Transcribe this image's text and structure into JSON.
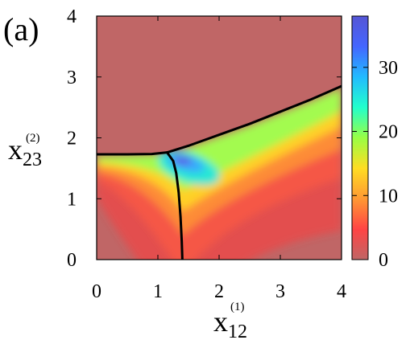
{
  "chart_data": {
    "type": "heatmap",
    "panel_label": "(a)",
    "xlabel": {
      "base": "x",
      "sub": "12",
      "sup": "(1)"
    },
    "ylabel": {
      "base": "x",
      "sub": "23",
      "sup": "(2)"
    },
    "xlim": [
      0,
      4
    ],
    "ylim": [
      0,
      4
    ],
    "x_ticks": [
      "0",
      "1",
      "2",
      "3",
      "4"
    ],
    "y_ticks": [
      "0",
      "1",
      "2",
      "3",
      "4"
    ],
    "colorbar": {
      "range": [
        0,
        38
      ],
      "ticks": [
        "0",
        "10",
        "20",
        "30"
      ],
      "tick_values": [
        0,
        10,
        20,
        30
      ],
      "colors": [
        "#c06666",
        "#ff4444",
        "#ff9933",
        "#ffdd22",
        "#99ff44",
        "#22ffcc",
        "#22bbff",
        "#4466ff",
        "#5555d5"
      ]
    },
    "background_color": "#c06666",
    "max_value": 37,
    "max_location": {
      "x": 1.3,
      "y": 1.72
    },
    "boundary_curves": [
      {
        "name": "left",
        "points": [
          [
            0,
            1.73
          ],
          [
            0.5,
            1.73
          ],
          [
            0.9,
            1.735
          ],
          [
            1.15,
            1.76
          ]
        ]
      },
      {
        "name": "upper",
        "points": [
          [
            1.15,
            1.76
          ],
          [
            1.5,
            1.87
          ],
          [
            2.0,
            2.05
          ],
          [
            2.5,
            2.23
          ],
          [
            3.0,
            2.43
          ],
          [
            3.5,
            2.63
          ],
          [
            4.0,
            2.85
          ]
        ]
      },
      {
        "name": "lower",
        "points": [
          [
            1.15,
            1.76
          ],
          [
            1.25,
            1.62
          ],
          [
            1.3,
            1.42
          ],
          [
            1.34,
            1.1
          ],
          [
            1.37,
            0.7
          ],
          [
            1.39,
            0.3
          ],
          [
            1.4,
            0
          ]
        ]
      }
    ]
  }
}
